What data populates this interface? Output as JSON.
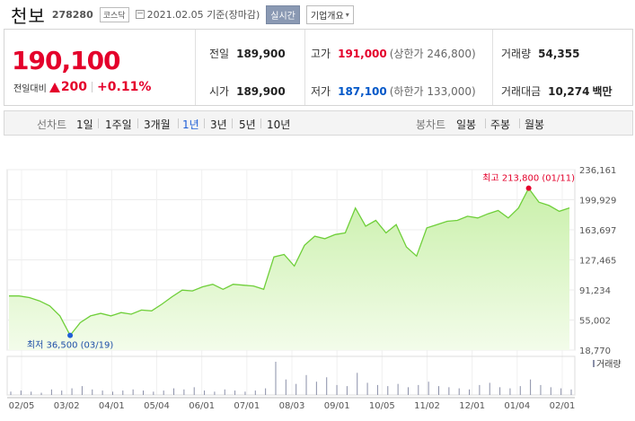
{
  "header": {
    "name": "천보",
    "code": "278280",
    "market": "코스닥",
    "date": "2021.02.05 기준(장마감)",
    "realtime_btn": "실시간",
    "corp_btn": "기업개요",
    "corp_btn_arrow": "▾"
  },
  "quote": {
    "price": "190,100",
    "change_label": "전일대비",
    "change": "200",
    "change_pct": "+0.11%",
    "prev_label": "전일",
    "prev": "189,900",
    "open_label": "시가",
    "open": "189,900",
    "high_label": "고가",
    "high": "191,000",
    "high_sub": "(상한가 246,800)",
    "low_label": "저가",
    "low": "187,100",
    "low_sub": "(하한가 133,000)",
    "vol_label": "거래량",
    "vol": "54,355",
    "amt_label": "거래대금",
    "amt": "10,274",
    "amt_unit": "백만",
    "colors": {
      "up": "#e4002b",
      "down": "#0057c8"
    }
  },
  "tabs": {
    "line_label": "선차트",
    "periods": [
      "1일",
      "1주일",
      "3개월",
      "1년",
      "3년",
      "5년",
      "10년"
    ],
    "selected_period": "1년",
    "candle_label": "봉차트",
    "candles": [
      "일봉",
      "주봉",
      "월봉"
    ]
  },
  "chart_data": {
    "type": "area",
    "y_ticks": [
      "236,161",
      "199,929",
      "163,697",
      "127,465",
      "91,234",
      "55,002",
      "18,770"
    ],
    "ylim": [
      18770,
      236161
    ],
    "x_ticks": [
      "02/05",
      "03/02",
      "04/01",
      "05/04",
      "06/01",
      "07/01",
      "08/03",
      "09/01",
      "10/05",
      "11/02",
      "12/01",
      "01/04",
      "02/01"
    ],
    "volume_label": "거래량",
    "max_label": "최고 213,800 (01/11)",
    "min_label": "최저 36,500 (03/19)",
    "max": {
      "x": "01/11",
      "y": 213800
    },
    "min": {
      "x": "03/19",
      "y": 36500
    },
    "series": [
      {
        "values": [
          [
            "02/05",
            84000
          ],
          [
            "02/13",
            84000
          ],
          [
            "02/20",
            82000
          ],
          [
            "02/26",
            78000
          ],
          [
            "03/04",
            72000
          ],
          [
            "03/11",
            60000
          ],
          [
            "03/19",
            36500
          ],
          [
            "03/25",
            52000
          ],
          [
            "04/01",
            60000
          ],
          [
            "04/08",
            63000
          ],
          [
            "04/15",
            60000
          ],
          [
            "04/22",
            64000
          ],
          [
            "04/29",
            62000
          ],
          [
            "05/06",
            67000
          ],
          [
            "05/13",
            66000
          ],
          [
            "05/20",
            74000
          ],
          [
            "05/27",
            83000
          ],
          [
            "06/03",
            91000
          ],
          [
            "06/10",
            90000
          ],
          [
            "06/17",
            95000
          ],
          [
            "06/24",
            98000
          ],
          [
            "07/01",
            92000
          ],
          [
            "07/08",
            98000
          ],
          [
            "07/15",
            97000
          ],
          [
            "07/22",
            96000
          ],
          [
            "07/29",
            92000
          ],
          [
            "08/03",
            131000
          ],
          [
            "08/10",
            134000
          ],
          [
            "08/17",
            120000
          ],
          [
            "08/24",
            145000
          ],
          [
            "08/31",
            156000
          ],
          [
            "09/07",
            153000
          ],
          [
            "09/14",
            158000
          ],
          [
            "09/21",
            160000
          ],
          [
            "09/28",
            190000
          ],
          [
            "10/01",
            168000
          ],
          [
            "10/08",
            175000
          ],
          [
            "10/15",
            160000
          ],
          [
            "10/22",
            170000
          ],
          [
            "10/29",
            143000
          ],
          [
            "11/05",
            132000
          ],
          [
            "11/12",
            166000
          ],
          [
            "11/19",
            170000
          ],
          [
            "11/26",
            174000
          ],
          [
            "12/03",
            175000
          ],
          [
            "12/10",
            180000
          ],
          [
            "12/17",
            178000
          ],
          [
            "12/24",
            183000
          ],
          [
            "12/30",
            187000
          ],
          [
            "01/04",
            178000
          ],
          [
            "01/08",
            190000
          ],
          [
            "01/11",
            213800
          ],
          [
            "01/18",
            197000
          ],
          [
            "01/25",
            193000
          ],
          [
            "02/01",
            186000
          ],
          [
            "02/05",
            190100
          ]
        ]
      }
    ],
    "volume": [
      3,
      4,
      3,
      2,
      5,
      4,
      6,
      8,
      5,
      4,
      3,
      4,
      5,
      4,
      3,
      4,
      6,
      5,
      7,
      4,
      3,
      5,
      4,
      3,
      4,
      6,
      30,
      14,
      10,
      18,
      12,
      16,
      9,
      8,
      20,
      11,
      9,
      8,
      10,
      7,
      9,
      12,
      8,
      7,
      6,
      5,
      9,
      11,
      7,
      6,
      8,
      14,
      9,
      7,
      6,
      5
    ],
    "colors": {
      "line": "#6fcf3a",
      "fill_top": "#c9f0aa",
      "fill_bottom": "#f3fcea",
      "max_dot": "#e4002b",
      "min_dot": "#1f5fd6",
      "volume": "#8a8fa8"
    }
  }
}
